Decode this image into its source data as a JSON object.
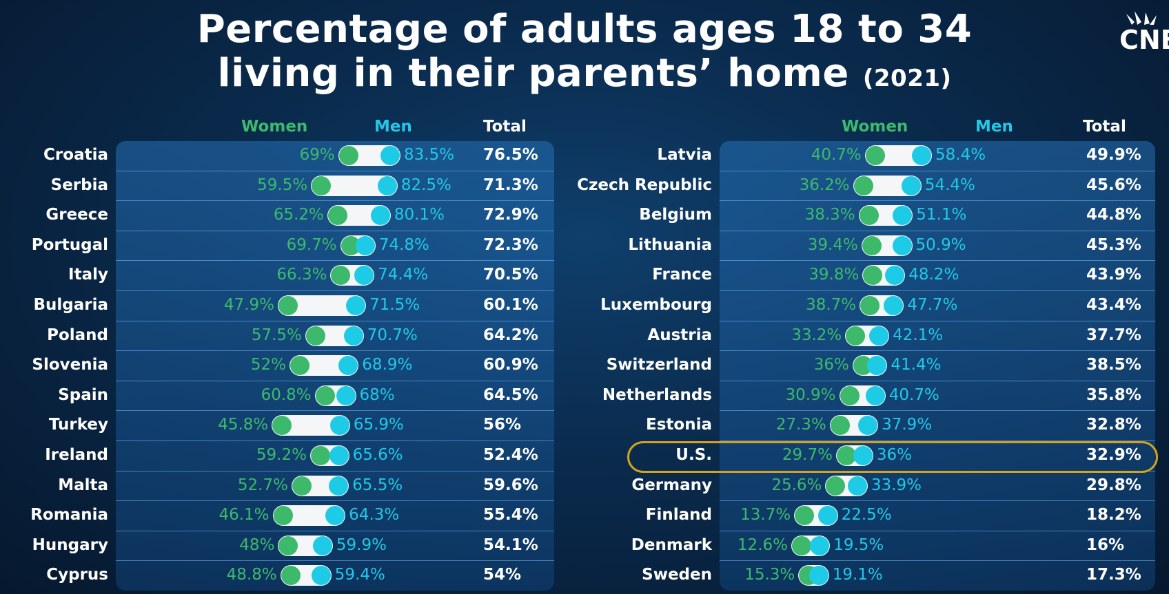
{
  "title": {
    "line1": "Percentage of adults ages 18 to 34",
    "line2": "living in their parents’ home",
    "year": "(2021)"
  },
  "logo": {
    "text": "CNB"
  },
  "headers": {
    "women": "Women",
    "men": "Men",
    "total": "Total"
  },
  "colors": {
    "women": "#3cb96b",
    "men": "#1dcbe7",
    "highlight": "#d4a21e"
  },
  "chart_data": {
    "type": "table",
    "title": "Percentage of adults ages 18 to 34 living in their parents’ home (2021)",
    "columns": [
      "Women",
      "Men",
      "Total"
    ],
    "left": [
      {
        "country": "Croatia",
        "women": 69,
        "men": 83.5,
        "total": 76.5,
        "women_label": "69%",
        "men_label": "83.5%",
        "total_label": "76.5%"
      },
      {
        "country": "Serbia",
        "women": 59.5,
        "men": 82.5,
        "total": 71.3,
        "women_label": "59.5%",
        "men_label": "82.5%",
        "total_label": "71.3%"
      },
      {
        "country": "Greece",
        "women": 65.2,
        "men": 80.1,
        "total": 72.9,
        "women_label": "65.2%",
        "men_label": "80.1%",
        "total_label": "72.9%"
      },
      {
        "country": "Portugal",
        "women": 69.7,
        "men": 74.8,
        "total": 72.3,
        "women_label": "69.7%",
        "men_label": "74.8%",
        "total_label": "72.3%"
      },
      {
        "country": "Italy",
        "women": 66.3,
        "men": 74.4,
        "total": 70.5,
        "women_label": "66.3%",
        "men_label": "74.4%",
        "total_label": "70.5%"
      },
      {
        "country": "Bulgaria",
        "women": 47.9,
        "men": 71.5,
        "total": 60.1,
        "women_label": "47.9%",
        "men_label": "71.5%",
        "total_label": "60.1%"
      },
      {
        "country": "Poland",
        "women": 57.5,
        "men": 70.7,
        "total": 64.2,
        "women_label": "57.5%",
        "men_label": "70.7%",
        "total_label": "64.2%"
      },
      {
        "country": "Slovenia",
        "women": 52,
        "men": 68.9,
        "total": 60.9,
        "women_label": "52%",
        "men_label": "68.9%",
        "total_label": "60.9%"
      },
      {
        "country": "Spain",
        "women": 60.8,
        "men": 68,
        "total": 64.5,
        "women_label": "60.8%",
        "men_label": "68%",
        "total_label": "64.5%"
      },
      {
        "country": "Turkey",
        "women": 45.8,
        "men": 65.9,
        "total": 56,
        "women_label": "45.8%",
        "men_label": "65.9%",
        "total_label": "56%"
      },
      {
        "country": "Ireland",
        "women": 59.2,
        "men": 65.6,
        "total": 52.4,
        "women_label": "59.2%",
        "men_label": "65.6%",
        "total_label": "52.4%"
      },
      {
        "country": "Malta",
        "women": 52.7,
        "men": 65.5,
        "total": 59.6,
        "women_label": "52.7%",
        "men_label": "65.5%",
        "total_label": "59.6%"
      },
      {
        "country": "Romania",
        "women": 46.1,
        "men": 64.3,
        "total": 55.4,
        "women_label": "46.1%",
        "men_label": "64.3%",
        "total_label": "55.4%"
      },
      {
        "country": "Hungary",
        "women": 48,
        "men": 59.9,
        "total": 54.1,
        "women_label": "48%",
        "men_label": "59.9%",
        "total_label": "54.1%"
      },
      {
        "country": "Cyprus",
        "women": 48.8,
        "men": 59.4,
        "total": 54,
        "women_label": "48.8%",
        "men_label": "59.4%",
        "total_label": "54%"
      }
    ],
    "right": [
      {
        "country": "Latvia",
        "women": 40.7,
        "men": 58.4,
        "total": 49.9,
        "women_label": "40.7%",
        "men_label": "58.4%",
        "total_label": "49.9%"
      },
      {
        "country": "Czech Republic",
        "women": 36.2,
        "men": 54.4,
        "total": 45.6,
        "women_label": "36.2%",
        "men_label": "54.4%",
        "total_label": "45.6%"
      },
      {
        "country": "Belgium",
        "women": 38.3,
        "men": 51.1,
        "total": 44.8,
        "women_label": "38.3%",
        "men_label": "51.1%",
        "total_label": "44.8%"
      },
      {
        "country": "Lithuania",
        "women": 39.4,
        "men": 50.9,
        "total": 45.3,
        "women_label": "39.4%",
        "men_label": "50.9%",
        "total_label": "45.3%"
      },
      {
        "country": "France",
        "women": 39.8,
        "men": 48.2,
        "total": 43.9,
        "women_label": "39.8%",
        "men_label": "48.2%",
        "total_label": "43.9%"
      },
      {
        "country": "Luxembourg",
        "women": 38.7,
        "men": 47.7,
        "total": 43.4,
        "women_label": "38.7%",
        "men_label": "47.7%",
        "total_label": "43.4%"
      },
      {
        "country": "Austria",
        "women": 33.2,
        "men": 42.1,
        "total": 37.7,
        "women_label": "33.2%",
        "men_label": "42.1%",
        "total_label": "37.7%"
      },
      {
        "country": "Switzerland",
        "women": 36,
        "men": 41.4,
        "total": 38.5,
        "women_label": "36%",
        "men_label": "41.4%",
        "total_label": "38.5%"
      },
      {
        "country": "Netherlands",
        "women": 30.9,
        "men": 40.7,
        "total": 35.8,
        "women_label": "30.9%",
        "men_label": "40.7%",
        "total_label": "35.8%"
      },
      {
        "country": "Estonia",
        "women": 27.3,
        "men": 37.9,
        "total": 32.8,
        "women_label": "27.3%",
        "men_label": "37.9%",
        "total_label": "32.8%"
      },
      {
        "country": "U.S.",
        "women": 29.7,
        "men": 36,
        "total": 32.9,
        "women_label": "29.7%",
        "men_label": "36%",
        "total_label": "32.9%",
        "highlighted": true
      },
      {
        "country": "Germany",
        "women": 25.6,
        "men": 33.9,
        "total": 29.8,
        "women_label": "25.6%",
        "men_label": "33.9%",
        "total_label": "29.8%"
      },
      {
        "country": "Finland",
        "women": 13.7,
        "men": 22.5,
        "total": 18.2,
        "women_label": "13.7%",
        "men_label": "22.5%",
        "total_label": "18.2%"
      },
      {
        "country": "Denmark",
        "women": 12.6,
        "men": 19.5,
        "total": 16,
        "women_label": "12.6%",
        "men_label": "19.5%",
        "total_label": "16%"
      },
      {
        "country": "Sweden",
        "women": 15.3,
        "men": 19.1,
        "total": 17.3,
        "women_label": "15.3%",
        "men_label": "19.1%",
        "total_label": "17.3%"
      }
    ]
  }
}
